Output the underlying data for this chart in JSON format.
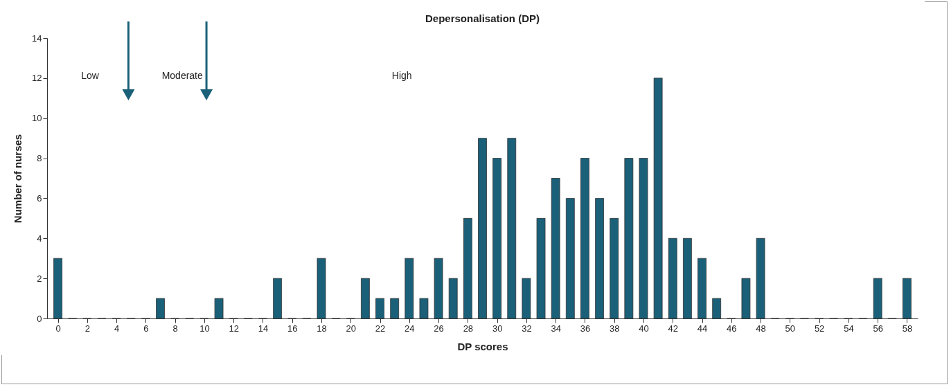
{
  "chart_data": {
    "type": "bar",
    "title": "Depersonalisation (DP)",
    "xlabel": "DP scores",
    "ylabel": "Number of nurses",
    "x": [
      0,
      1,
      2,
      3,
      4,
      5,
      6,
      7,
      8,
      9,
      10,
      11,
      12,
      13,
      14,
      15,
      16,
      17,
      18,
      19,
      20,
      21,
      22,
      23,
      24,
      25,
      26,
      27,
      28,
      29,
      30,
      31,
      32,
      33,
      34,
      35,
      36,
      37,
      38,
      39,
      40,
      41,
      42,
      43,
      44,
      45,
      46,
      47,
      48,
      49,
      50,
      51,
      52,
      53,
      54,
      55,
      56,
      57,
      58
    ],
    "values": [
      3,
      0,
      0,
      0,
      0,
      0,
      0,
      1,
      0,
      0,
      0,
      1,
      0,
      0,
      0,
      2,
      0,
      0,
      3,
      0,
      0,
      2,
      1,
      1,
      3,
      1,
      3,
      2,
      5,
      9,
      8,
      9,
      2,
      5,
      7,
      6,
      8,
      6,
      5,
      8,
      8,
      12,
      4,
      4,
      3,
      1,
      0,
      2,
      4,
      0,
      0,
      0,
      0,
      0,
      0,
      0,
      2,
      0,
      2
    ],
    "color": "#1b6079",
    "xlim": [
      -0.5,
      58.5
    ],
    "xticks": [
      0,
      2,
      4,
      6,
      8,
      10,
      12,
      14,
      16,
      18,
      20,
      22,
      24,
      26,
      28,
      30,
      32,
      34,
      36,
      38,
      40,
      42,
      44,
      46,
      48,
      50,
      52,
      54,
      56,
      58
    ],
    "ylim": [
      0,
      14
    ],
    "yticks": [
      0,
      2,
      4,
      6,
      8,
      10,
      12,
      14
    ],
    "annotations": [
      "Low",
      "Moderate",
      "High"
    ]
  }
}
